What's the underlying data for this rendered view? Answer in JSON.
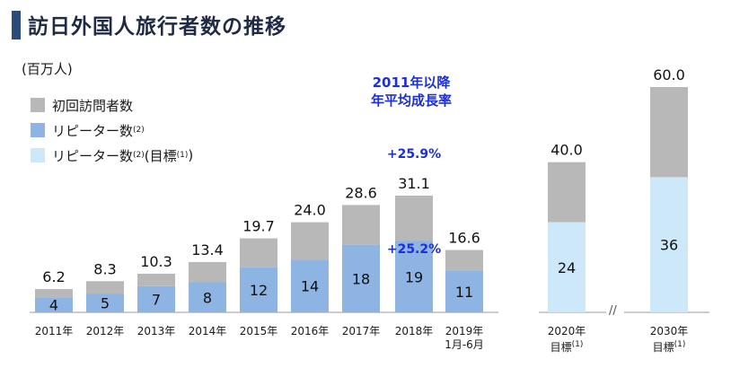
{
  "header": {
    "title": "訪日外国人旅行者数の推移",
    "unit": "(百万人)"
  },
  "legend": [
    {
      "label": "初回訪問者数",
      "color": "#b8b8b8"
    },
    {
      "label": "リピーター数",
      "sup": "(2)",
      "color": "#8eb4e3"
    },
    {
      "label": "リピーター数",
      "sup": "(2)",
      "suffix": " (目標",
      "suffix_sup": "(1)",
      "suffix_end": ")",
      "color": "#cde8f8"
    }
  ],
  "growth_note": {
    "line1": "2011年以降",
    "line2": "年平均成長率",
    "total": "+25.9%",
    "repeat": "+25.2%"
  },
  "axis_break": "//",
  "chart_data": {
    "type": "bar",
    "stacked": true,
    "unit": "百万人",
    "categories": [
      "2011年",
      "2012年",
      "2013年",
      "2014年",
      "2015年",
      "2016年",
      "2017年",
      "2018年",
      "2019年 1月-6月",
      "2020年 目標(1)",
      "2030年 目標(1)"
    ],
    "totals": [
      6.2,
      8.3,
      10.3,
      13.4,
      19.7,
      24.0,
      28.6,
      31.1,
      16.6,
      40.0,
      60.0
    ],
    "repeaters": [
      4,
      5,
      7,
      8,
      12,
      14,
      18,
      19,
      11,
      24,
      36
    ],
    "repeater_is_target": [
      false,
      false,
      false,
      false,
      false,
      false,
      false,
      false,
      false,
      true,
      true
    ],
    "ylim": [
      0,
      60
    ]
  }
}
